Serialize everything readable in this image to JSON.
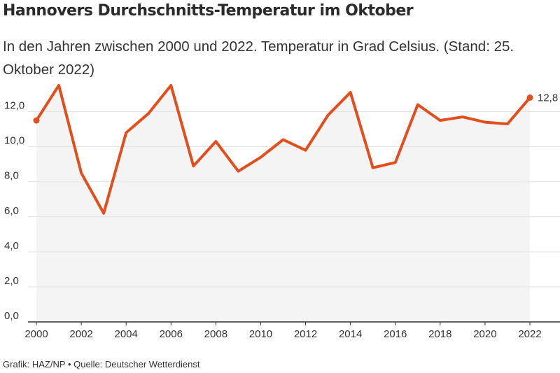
{
  "header": {
    "title": "Hannovers Durchschnitts-Temperatur im Oktober",
    "subtitle": "In den Jahren zwischen 2000 und 2022. Temperatur in Grad Celsius. (Stand: 25. Oktober 2022)"
  },
  "footer": {
    "credit": "Grafik: HAZ/NP • Quelle: Deutscher Wetterdienst"
  },
  "colors": {
    "line": "#e34e1d",
    "area": "#f4f4f4",
    "grid": "#e3e3e3",
    "axis": "#333333"
  },
  "chart_data": {
    "type": "area",
    "title": "Hannovers Durchschnitts-Temperatur im Oktober",
    "xlabel": "",
    "ylabel": "",
    "x": [
      2000,
      2001,
      2002,
      2003,
      2004,
      2005,
      2006,
      2007,
      2008,
      2009,
      2010,
      2011,
      2012,
      2013,
      2014,
      2015,
      2016,
      2017,
      2018,
      2019,
      2020,
      2021,
      2022
    ],
    "series": [
      {
        "values": [
          11.5,
          13.5,
          8.5,
          6.2,
          10.8,
          11.9,
          13.5,
          8.9,
          10.3,
          8.6,
          9.4,
          10.4,
          9.8,
          11.8,
          13.1,
          8.8,
          9.1,
          12.4,
          11.5,
          11.7,
          11.4,
          11.3,
          12.8
        ]
      }
    ],
    "x_ticks": [
      2000,
      2002,
      2004,
      2006,
      2008,
      2010,
      2012,
      2014,
      2016,
      2018,
      2020,
      2022
    ],
    "y_ticks": [
      "0,0",
      "2,0",
      "4,0",
      "6,0",
      "8,0",
      "10,0",
      "12,0"
    ],
    "ylim": [
      0,
      13.5
    ],
    "xlim": [
      2000,
      2022
    ],
    "grid": true,
    "end_label": "12,8"
  }
}
